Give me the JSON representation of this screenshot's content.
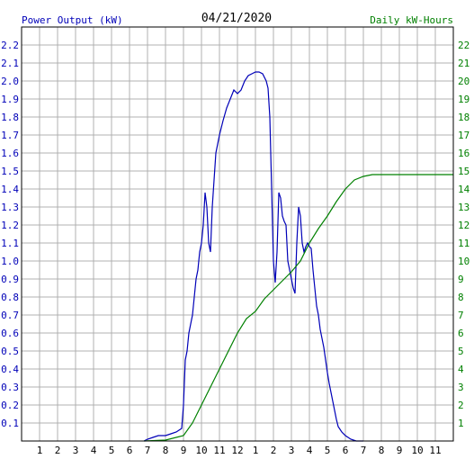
{
  "chart_data": {
    "type": "line",
    "title": "04/21/2020",
    "left_axis_label": "Power Output (kW)",
    "right_axis_label": "Daily kW-Hours",
    "x_ticks": [
      "1",
      "2",
      "3",
      "4",
      "5",
      "6",
      "7",
      "8",
      "9",
      "10",
      "11",
      "12",
      "1",
      "2",
      "3",
      "4",
      "5",
      "6",
      "7",
      "8",
      "9",
      "10",
      "11"
    ],
    "x_range_hours": [
      0,
      24
    ],
    "left_ylim": [
      0,
      2.3
    ],
    "left_ticks": [
      "0.1",
      "0.2",
      "0.3",
      "0.4",
      "0.5",
      "0.6",
      "0.7",
      "0.8",
      "0.9",
      "1.0",
      "1.1",
      "1.2",
      "1.3",
      "1.4",
      "1.5",
      "1.6",
      "1.7",
      "1.8",
      "1.9",
      "2.0",
      "2.1",
      "2.2"
    ],
    "right_ylim": [
      0,
      23
    ],
    "right_ticks": [
      "1",
      "2",
      "3",
      "4",
      "5",
      "6",
      "7",
      "8",
      "9",
      "10",
      "11",
      "12",
      "13",
      "14",
      "15",
      "16",
      "17",
      "18",
      "19",
      "20",
      "21",
      "22"
    ],
    "grid": true,
    "colors": {
      "power": "#0000b8",
      "energy": "#008000",
      "grid": "#b0b0b0",
      "axis_text_left": "#0000b8",
      "axis_text_right": "#008000"
    },
    "series": [
      {
        "name": "Power Output (kW)",
        "axis": "left",
        "points": [
          [
            6.8,
            0.0
          ],
          [
            7.0,
            0.01
          ],
          [
            7.3,
            0.02
          ],
          [
            7.6,
            0.03
          ],
          [
            8.0,
            0.03
          ],
          [
            8.3,
            0.04
          ],
          [
            8.6,
            0.05
          ],
          [
            8.9,
            0.07
          ],
          [
            9.0,
            0.2
          ],
          [
            9.1,
            0.45
          ],
          [
            9.2,
            0.5
          ],
          [
            9.3,
            0.6
          ],
          [
            9.4,
            0.65
          ],
          [
            9.5,
            0.7
          ],
          [
            9.6,
            0.8
          ],
          [
            9.7,
            0.9
          ],
          [
            9.8,
            0.95
          ],
          [
            9.9,
            1.05
          ],
          [
            10.0,
            1.1
          ],
          [
            10.1,
            1.2
          ],
          [
            10.2,
            1.38
          ],
          [
            10.3,
            1.3
          ],
          [
            10.4,
            1.1
          ],
          [
            10.5,
            1.05
          ],
          [
            10.6,
            1.3
          ],
          [
            10.7,
            1.45
          ],
          [
            10.8,
            1.6
          ],
          [
            10.9,
            1.65
          ],
          [
            11.0,
            1.7
          ],
          [
            11.2,
            1.78
          ],
          [
            11.4,
            1.85
          ],
          [
            11.6,
            1.9
          ],
          [
            11.8,
            1.95
          ],
          [
            12.0,
            1.93
          ],
          [
            12.2,
            1.95
          ],
          [
            12.4,
            2.0
          ],
          [
            12.6,
            2.03
          ],
          [
            12.8,
            2.04
          ],
          [
            13.0,
            2.05
          ],
          [
            13.2,
            2.05
          ],
          [
            13.4,
            2.04
          ],
          [
            13.6,
            2.0
          ],
          [
            13.7,
            1.96
          ],
          [
            13.8,
            1.8
          ],
          [
            13.9,
            1.4
          ],
          [
            14.0,
            1.0
          ],
          [
            14.1,
            0.88
          ],
          [
            14.2,
            1.05
          ],
          [
            14.3,
            1.38
          ],
          [
            14.4,
            1.35
          ],
          [
            14.5,
            1.25
          ],
          [
            14.6,
            1.22
          ],
          [
            14.7,
            1.2
          ],
          [
            14.8,
            1.0
          ],
          [
            14.9,
            0.95
          ],
          [
            15.0,
            0.9
          ],
          [
            15.1,
            0.85
          ],
          [
            15.2,
            0.82
          ],
          [
            15.3,
            1.1
          ],
          [
            15.4,
            1.3
          ],
          [
            15.5,
            1.25
          ],
          [
            15.6,
            1.1
          ],
          [
            15.7,
            1.05
          ],
          [
            15.8,
            1.08
          ],
          [
            15.9,
            1.1
          ],
          [
            16.0,
            1.08
          ],
          [
            16.1,
            1.07
          ],
          [
            16.2,
            0.95
          ],
          [
            16.3,
            0.85
          ],
          [
            16.4,
            0.75
          ],
          [
            16.5,
            0.7
          ],
          [
            16.6,
            0.62
          ],
          [
            16.7,
            0.57
          ],
          [
            16.8,
            0.52
          ],
          [
            16.9,
            0.45
          ],
          [
            17.0,
            0.38
          ],
          [
            17.1,
            0.32
          ],
          [
            17.2,
            0.27
          ],
          [
            17.3,
            0.22
          ],
          [
            17.4,
            0.17
          ],
          [
            17.5,
            0.12
          ],
          [
            17.6,
            0.08
          ],
          [
            17.8,
            0.05
          ],
          [
            18.0,
            0.03
          ],
          [
            18.3,
            0.01
          ],
          [
            18.6,
            0.0
          ],
          [
            19.0,
            0.0
          ]
        ]
      },
      {
        "name": "Daily kW-Hours",
        "axis": "right",
        "points": [
          [
            6.8,
            0.0
          ],
          [
            8.0,
            0.05
          ],
          [
            9.0,
            0.3
          ],
          [
            9.5,
            1.0
          ],
          [
            10.0,
            2.0
          ],
          [
            10.5,
            3.0
          ],
          [
            11.0,
            4.0
          ],
          [
            11.5,
            5.0
          ],
          [
            12.0,
            6.0
          ],
          [
            12.5,
            6.8
          ],
          [
            13.0,
            7.2
          ],
          [
            13.5,
            7.9
          ],
          [
            14.0,
            8.4
          ],
          [
            14.5,
            8.9
          ],
          [
            15.0,
            9.4
          ],
          [
            15.5,
            10.0
          ],
          [
            16.0,
            11.0
          ],
          [
            16.5,
            11.8
          ],
          [
            17.0,
            12.5
          ],
          [
            17.5,
            13.3
          ],
          [
            18.0,
            14.0
          ],
          [
            18.5,
            14.5
          ],
          [
            19.0,
            14.7
          ],
          [
            19.5,
            14.8
          ],
          [
            20.0,
            14.8
          ],
          [
            21.0,
            14.8
          ],
          [
            22.0,
            14.8
          ],
          [
            24.0,
            14.8
          ]
        ]
      }
    ]
  }
}
